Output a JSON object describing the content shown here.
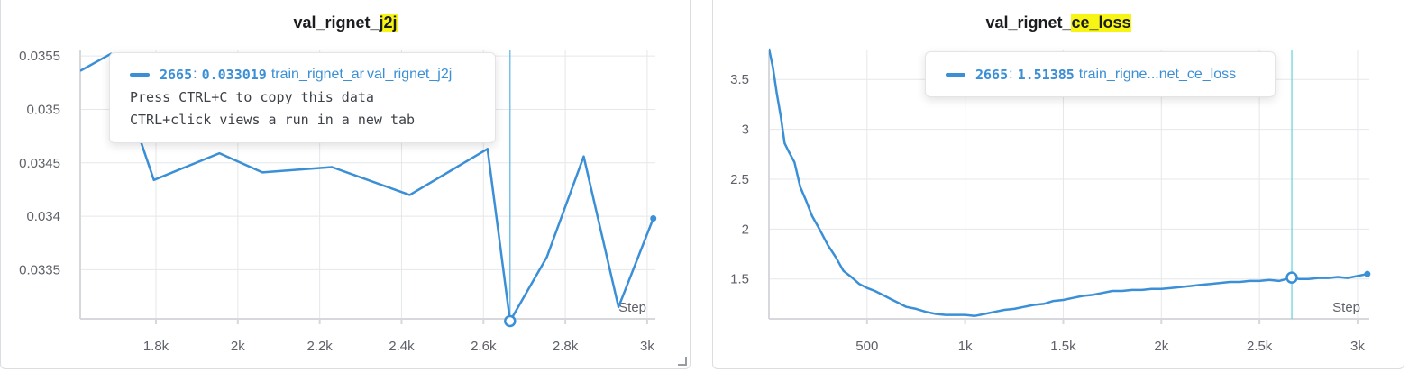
{
  "panels": [
    {
      "title_prefix": "val_rignet_",
      "title_highlight": "j2j",
      "tooltip": {
        "step": "2665",
        "value": "0.033019",
        "run_name": "train_rignet_ar",
        "series_name": "val_rignet_j2j",
        "help_line_1": "Press CTRL+C to copy this data",
        "help_line_2": "CTRL+click views a run in a new tab"
      }
    },
    {
      "title_prefix": "val_rignet_",
      "title_highlight": "ce_loss",
      "tooltip": {
        "step": "2665",
        "value": "1.51385",
        "run_name": "train_rigne...net_ce_loss"
      }
    }
  ],
  "colors": {
    "series": "#3a8fd6",
    "highlight": "#f7f513",
    "grid": "#e6e7ea",
    "axis": "#d7d8dc"
  },
  "chart_data": [
    {
      "type": "line",
      "title": "val_rignet_j2j",
      "xlabel": "Step",
      "ylabel": "",
      "xlim": [
        1615,
        3020
      ],
      "ylim": [
        0.03304,
        0.03556
      ],
      "x_ticks": [
        1800,
        2000,
        2200,
        2400,
        2600,
        2800,
        3000
      ],
      "x_tick_labels": [
        "1.8k",
        "2k",
        "2.2k",
        "2.4k",
        "2.6k",
        "2.8k",
        "3k"
      ],
      "y_ticks": [
        0.0355,
        0.035,
        0.0345,
        0.034,
        0.0335
      ],
      "y_tick_labels": [
        "0.0355",
        "0.035",
        "0.0345",
        "0.034",
        "0.0335"
      ],
      "grid": true,
      "hover_step": 2665,
      "series": [
        {
          "x": [
            1615,
            1690,
            1795,
            1955,
            2060,
            2230,
            2420,
            2610,
            2665,
            2755,
            2845,
            2930,
            3015
          ],
          "y": [
            0.03536,
            0.03552,
            0.03434,
            0.03459,
            0.03441,
            0.03446,
            0.0342,
            0.03463,
            0.033019,
            0.03362,
            0.03456,
            0.03315,
            0.03398
          ]
        }
      ]
    },
    {
      "type": "line",
      "title": "val_rignet_ce_loss",
      "xlabel": "Step",
      "ylabel": "",
      "xlim": [
        0,
        3060
      ],
      "ylim": [
        1.1,
        3.8
      ],
      "x_ticks": [
        500,
        1000,
        1500,
        2000,
        2500,
        3000
      ],
      "x_tick_labels": [
        "500",
        "1k",
        "1.5k",
        "2k",
        "2.5k",
        "3k"
      ],
      "y_ticks": [
        3.5,
        3,
        2.5,
        2,
        1.5
      ],
      "y_tick_labels": [
        "3.5",
        "3",
        "2.5",
        "2",
        "1.5"
      ],
      "grid": true,
      "hover_step": 2665,
      "series": [
        {
          "x": [
            0,
            20,
            40,
            60,
            80,
            100,
            130,
            160,
            190,
            220,
            260,
            300,
            340,
            380,
            420,
            460,
            500,
            540,
            580,
            620,
            660,
            700,
            750,
            800,
            850,
            900,
            950,
            1000,
            1050,
            1100,
            1150,
            1200,
            1250,
            1300,
            1350,
            1400,
            1450,
            1500,
            1550,
            1600,
            1650,
            1700,
            1750,
            1800,
            1850,
            1900,
            1950,
            2000,
            2050,
            2100,
            2150,
            2200,
            2250,
            2300,
            2350,
            2400,
            2450,
            2500,
            2550,
            2600,
            2665,
            2700,
            2750,
            2800,
            2850,
            2900,
            2950,
            3000,
            3050
          ],
          "y": [
            3.81,
            3.62,
            3.36,
            3.13,
            2.86,
            2.78,
            2.67,
            2.42,
            2.28,
            2.13,
            1.99,
            1.84,
            1.72,
            1.58,
            1.52,
            1.45,
            1.41,
            1.38,
            1.34,
            1.3,
            1.26,
            1.22,
            1.2,
            1.17,
            1.15,
            1.14,
            1.14,
            1.14,
            1.13,
            1.15,
            1.17,
            1.19,
            1.2,
            1.22,
            1.24,
            1.25,
            1.28,
            1.29,
            1.31,
            1.33,
            1.34,
            1.36,
            1.38,
            1.38,
            1.39,
            1.39,
            1.4,
            1.4,
            1.41,
            1.42,
            1.43,
            1.44,
            1.45,
            1.46,
            1.47,
            1.47,
            1.48,
            1.48,
            1.49,
            1.48,
            1.51385,
            1.5,
            1.5,
            1.51,
            1.51,
            1.52,
            1.51,
            1.53,
            1.55
          ]
        }
      ]
    }
  ]
}
